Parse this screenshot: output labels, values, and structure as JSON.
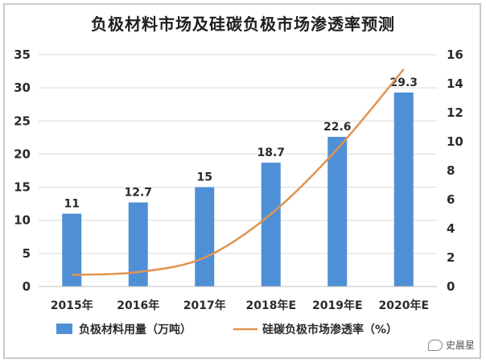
{
  "chart_data": {
    "type": "bar",
    "title": "负极材料市场及硅碳负极市场渗透率预测",
    "categories": [
      "2015年",
      "2016年",
      "2017年",
      "2018年E",
      "2019年E",
      "2020年E"
    ],
    "series": [
      {
        "name": "负极材料用量（万吨）",
        "type": "bar",
        "axis": "left",
        "color": "#4f8fd6",
        "values": [
          11,
          12.7,
          15,
          18.7,
          22.6,
          29.3
        ],
        "labels": [
          "11",
          "12.7",
          "15",
          "18.7",
          "22.6",
          "29.3"
        ]
      },
      {
        "name": "硅碳负极市场渗透率（%）",
        "type": "line",
        "axis": "right",
        "color": "#e0944f",
        "values": [
          0.8,
          1.0,
          2.0,
          5.0,
          9.5,
          15.0
        ]
      }
    ],
    "y_left": {
      "min": 0,
      "max": 35,
      "ticks": [
        "0",
        "5",
        "10",
        "15",
        "20",
        "25",
        "30",
        "35"
      ]
    },
    "y_right": {
      "min": 0,
      "max": 16,
      "ticks": [
        "0",
        "2",
        "4",
        "6",
        "8",
        "10",
        "12",
        "14",
        "16"
      ]
    },
    "grid": true,
    "legend_position": "bottom"
  },
  "watermark": {
    "text": "史晨星"
  }
}
